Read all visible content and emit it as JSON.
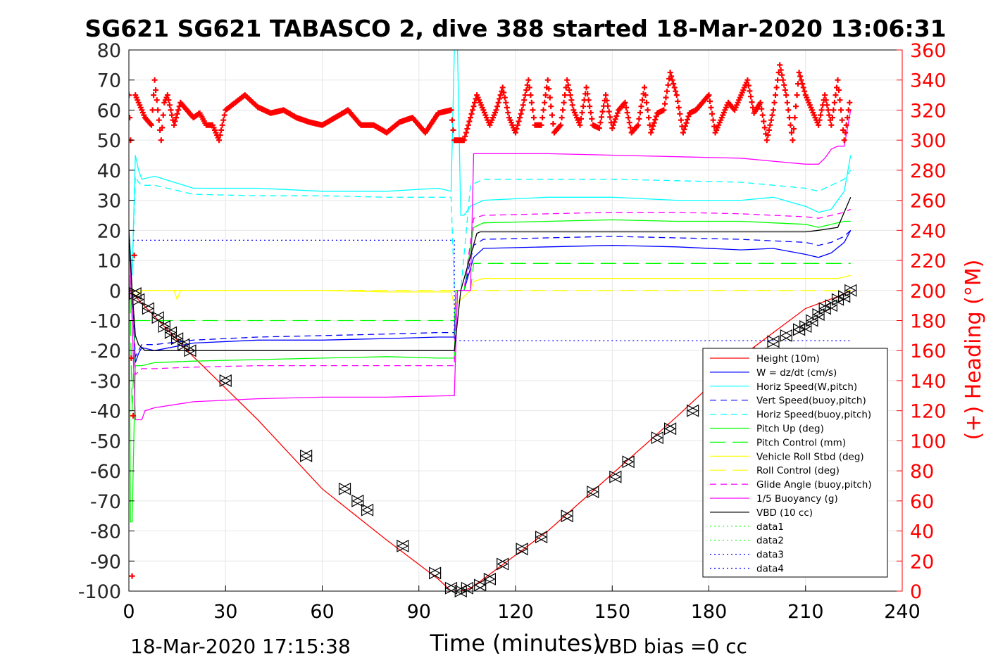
{
  "chart_data": {
    "type": "line",
    "title": "SG621 SG621 TABASCO 2, dive 388 started 18-Mar-2020 13:06:31",
    "xlabel": "Time (minutes)",
    "ylabel_right": "(+) Heading (°M)",
    "footer_left": "18-Mar-2020 17:15:38",
    "footer_right": "VBD bias =0 cc",
    "xlim": [
      0,
      240
    ],
    "ylim": [
      -100,
      80
    ],
    "ylim_right": [
      0,
      360
    ],
    "x_ticks": [
      "0",
      "30",
      "60",
      "90",
      "120",
      "150",
      "180",
      "210",
      "240"
    ],
    "y_ticks": [
      "80",
      "70",
      "60",
      "50",
      "40",
      "30",
      "20",
      "10",
      "0",
      "-10",
      "-20",
      "-30",
      "-40",
      "-50",
      "-60",
      "-70",
      "-80",
      "-90",
      "-100"
    ],
    "y_right_ticks": [
      "360",
      "340",
      "320",
      "300",
      "280",
      "260",
      "240",
      "220",
      "200",
      "180",
      "160",
      "140",
      "120",
      "100",
      "80",
      "60",
      "40",
      "20",
      "0"
    ],
    "grid": true,
    "legend_position": "bottom-right",
    "colors": {
      "height": "#ff0000",
      "w": "#0000ff",
      "horiz": "#00ffff",
      "pitch": "#00ff00",
      "roll": "#ffff00",
      "glide": "#ff00ff",
      "buoy": "#ff00ff",
      "vbd": "#000000",
      "heading": "#ff0000",
      "data4": "#0000ff",
      "right_axis": "#ff0000"
    },
    "series": [
      {
        "name": "Height (10m)",
        "key": "height",
        "color": "#ff0000",
        "dash": "",
        "x": [
          0,
          1,
          2,
          20,
          40,
          60,
          80,
          96,
          100,
          103,
          106,
          110,
          130,
          150,
          170,
          190,
          210,
          220,
          224
        ],
        "y": [
          0,
          -0.5,
          -2,
          -22,
          -43,
          -66,
          -83,
          -96,
          -100,
          -100,
          -99,
          -96,
          -80,
          -61,
          -42,
          -22,
          -6,
          -2,
          0
        ]
      },
      {
        "name": "W = dz/dt (cm/s)",
        "key": "w",
        "color": "#0000ff",
        "dash": "",
        "x": [
          0,
          1,
          2,
          3,
          4,
          8,
          20,
          40,
          60,
          80,
          96,
          101,
          101.5,
          104,
          107,
          110,
          130,
          150,
          170,
          190,
          200,
          210,
          214,
          218,
          222,
          224
        ],
        "y": [
          18,
          0,
          -24,
          -21,
          -19,
          -20,
          -17.5,
          -16.5,
          -16.5,
          -16,
          -15.5,
          -15.5,
          0,
          0,
          11,
          14,
          14.5,
          15,
          14.5,
          13.5,
          14,
          12,
          11,
          12.5,
          16,
          20
        ]
      },
      {
        "name": "Horiz Speed(W,pitch)",
        "key": "horiz",
        "color": "#00ffff",
        "dash": "",
        "x": [
          0,
          1,
          2,
          3,
          4,
          8,
          20,
          40,
          60,
          80,
          96,
          100,
          101,
          102,
          103,
          104,
          106,
          110,
          130,
          150,
          170,
          190,
          200,
          210,
          214,
          218,
          222,
          224
        ],
        "y": [
          20,
          5,
          45,
          40,
          37,
          38,
          34,
          34,
          33,
          33,
          34,
          33,
          80,
          80,
          25,
          25,
          28,
          30,
          31,
          31,
          30,
          30,
          31,
          28,
          26,
          27,
          33,
          45
        ]
      },
      {
        "name": "Vert Speed(buoy,pitch)",
        "key": "vsb",
        "color": "#0000ff",
        "dash": "9,6",
        "x": [
          0,
          1,
          2,
          3,
          4,
          8,
          20,
          40,
          60,
          80,
          96,
          101,
          101.5,
          104,
          107,
          110,
          130,
          150,
          170,
          190,
          200,
          210,
          214,
          218,
          222,
          224
        ],
        "y": [
          14,
          0,
          -22,
          -20,
          -18,
          -18,
          -16.5,
          -15.5,
          -15,
          -14.5,
          -14,
          -14,
          0,
          0,
          15,
          17,
          17.5,
          18,
          17.5,
          17,
          16.5,
          16,
          15,
          16,
          18,
          20
        ]
      },
      {
        "name": "Horiz Speed(buoy,pitch)",
        "key": "hsb",
        "color": "#00ffff",
        "dash": "9,6",
        "x": [
          0,
          1,
          2,
          3,
          4,
          8,
          20,
          40,
          60,
          80,
          96,
          100,
          101,
          103,
          106,
          110,
          130,
          150,
          170,
          190,
          210,
          214,
          218,
          222,
          224
        ],
        "y": [
          20,
          5,
          38,
          36,
          35,
          35,
          32,
          31.5,
          31.5,
          31,
          31,
          31,
          0,
          0,
          35,
          37,
          37,
          37,
          36.5,
          36,
          34,
          33,
          35,
          37,
          40
        ]
      },
      {
        "name": "Pitch Up (deg)",
        "key": "pitch",
        "color": "#00ff00",
        "dash": "",
        "x": [
          0,
          0.5,
          1,
          2,
          3,
          4,
          8,
          20,
          40,
          60,
          80,
          96,
          101,
          101.5,
          104,
          107,
          110,
          130,
          150,
          170,
          190,
          200,
          210,
          214,
          218,
          222,
          224
        ],
        "y": [
          10,
          -77,
          -77,
          -25,
          -25,
          -25,
          -24,
          -23.5,
          -23,
          -22.5,
          -22,
          -22.5,
          -22.5,
          0,
          0,
          21,
          22.5,
          23,
          23.5,
          23,
          23,
          22.5,
          22,
          21,
          22,
          23,
          23
        ]
      },
      {
        "name": "Pitch Control (mm)",
        "key": "pcontrol",
        "color": "#00ff00",
        "dash": "22,10",
        "x": [
          0,
          1,
          2,
          3,
          20,
          40,
          60,
          80,
          101,
          101.5,
          106,
          107,
          130,
          150,
          170,
          190,
          210,
          220,
          224
        ],
        "y": [
          20,
          -40,
          -10,
          -10,
          -10,
          -10,
          -10,
          -10,
          -10,
          0,
          0,
          9,
          9,
          9,
          9,
          9,
          9,
          9,
          9
        ]
      },
      {
        "name": "Vehicle Roll Stbd (deg)",
        "key": "roll",
        "color": "#ffff00",
        "dash": "",
        "x": [
          0,
          1,
          2,
          4,
          8,
          14,
          15,
          16,
          20,
          40,
          60,
          80,
          100,
          101,
          106,
          107,
          110,
          130,
          150,
          170,
          190,
          210,
          220,
          224
        ],
        "y": [
          15,
          0,
          -2,
          0,
          0,
          0,
          -3,
          0,
          0,
          0,
          0,
          -0.5,
          -0.5,
          -5,
          0,
          3,
          4,
          4,
          4,
          4,
          4,
          4,
          4,
          5
        ]
      },
      {
        "name": "Roll Control (deg)",
        "key": "rcontrol",
        "color": "#ffff00",
        "dash": "22,10",
        "x": [
          0,
          1,
          2,
          4,
          40,
          80,
          100,
          101,
          106,
          107,
          130,
          150,
          170,
          190,
          210,
          224
        ],
        "y": [
          10,
          0,
          0,
          0,
          0,
          0,
          0,
          0,
          0,
          0,
          0,
          0,
          0,
          0,
          0,
          0
        ]
      },
      {
        "name": "Glide Angle (buoy,pitch)",
        "key": "glide",
        "color": "#ff00ff",
        "dash": "9,6",
        "x": [
          0,
          1,
          2,
          3,
          4,
          8,
          20,
          40,
          60,
          80,
          96,
          101,
          101.5,
          104,
          107,
          110,
          130,
          150,
          170,
          190,
          200,
          210,
          214,
          218,
          222,
          224
        ],
        "y": [
          15,
          0,
          -28,
          -27,
          -26,
          -26,
          -25.5,
          -25,
          -25,
          -25,
          -25,
          -25,
          0,
          0,
          24,
          25,
          25.5,
          26,
          26,
          25.5,
          25,
          24.5,
          24,
          25,
          26,
          27
        ]
      },
      {
        "name": "1/5 Buoyancy (g)",
        "key": "buoy",
        "color": "#ff00ff",
        "dash": "",
        "x": [
          0,
          1,
          2,
          3,
          4,
          5,
          8,
          20,
          40,
          60,
          80,
          100,
          101,
          102,
          106,
          107,
          130,
          150,
          170,
          190,
          200,
          210,
          214,
          216,
          218,
          220,
          222,
          224
        ],
        "y": [
          20,
          -10,
          -43,
          -43,
          -43,
          -40,
          -39,
          -37,
          -36,
          -35.5,
          -35.5,
          -35,
          -35,
          0,
          0,
          45.5,
          45.5,
          45,
          44.5,
          44,
          43,
          42,
          42,
          44,
          47,
          48,
          48,
          60
        ]
      },
      {
        "name": "VBD (10 cc)",
        "key": "vbd",
        "color": "#000000",
        "dash": "",
        "x": [
          0,
          1,
          2,
          3,
          5,
          20,
          40,
          60,
          80,
          101,
          103,
          108,
          109,
          130,
          150,
          170,
          190,
          210,
          214,
          220,
          224
        ],
        "y": [
          20,
          0,
          -15,
          -18,
          -20,
          -20,
          -20,
          -20,
          -20,
          -20,
          0,
          19,
          19.5,
          19.5,
          19.5,
          19.5,
          19.5,
          19.5,
          20,
          21,
          31
        ]
      },
      {
        "name": "data1",
        "key": "data1",
        "color": "#00ff00",
        "dash": "2,4",
        "x": [],
        "y": []
      },
      {
        "name": "data2",
        "key": "data2",
        "color": "#00ff00",
        "dash": "2,4",
        "x": [],
        "y": []
      },
      {
        "name": "data3",
        "key": "data3",
        "color": "#0000ff",
        "dash": "2,4",
        "x": [],
        "y": []
      },
      {
        "name": "data4",
        "key": "data4",
        "color": "#0000ff",
        "dash": "2,4",
        "x": [
          0,
          101,
          101,
          224
        ],
        "y": [
          16.7,
          16.7,
          -16.7,
          -16.7
        ]
      }
    ],
    "heading": {
      "axis": "right",
      "marker": "+",
      "x": [
        0,
        0.5,
        1,
        2,
        3,
        5,
        7,
        8,
        9,
        10,
        11,
        12,
        14,
        16,
        18,
        20,
        22,
        24,
        26,
        28,
        30,
        33,
        36,
        40,
        44,
        48,
        52,
        56,
        60,
        64,
        68,
        72,
        76,
        80,
        84,
        88,
        92,
        96,
        100,
        101,
        103,
        104,
        106,
        108,
        110,
        112,
        114,
        116,
        118,
        120,
        122,
        124,
        126,
        128,
        130,
        132,
        134,
        136,
        138,
        140,
        142,
        144,
        146,
        148,
        150,
        152,
        154,
        156,
        158,
        160,
        162,
        164,
        166,
        168,
        170,
        172,
        174,
        176,
        178,
        180,
        182,
        184,
        186,
        188,
        190,
        192,
        194,
        196,
        198,
        200,
        202,
        204,
        206,
        208,
        210,
        212,
        214,
        216,
        218,
        220,
        222,
        224
      ],
      "y": [
        330,
        300,
        10,
        330,
        325,
        315,
        310,
        340,
        320,
        300,
        325,
        330,
        310,
        325,
        320,
        315,
        318,
        310,
        310,
        300,
        320,
        325,
        330,
        322,
        318,
        320,
        315,
        312,
        310,
        315,
        320,
        310,
        310,
        305,
        312,
        315,
        305,
        318,
        320,
        300,
        300,
        300,
        315,
        330,
        320,
        310,
        320,
        335,
        315,
        305,
        320,
        340,
        310,
        310,
        340,
        305,
        310,
        340,
        320,
        310,
        335,
        310,
        308,
        330,
        308,
        320,
        325,
        305,
        310,
        335,
        305,
        318,
        320,
        345,
        330,
        305,
        318,
        320,
        325,
        330,
        305,
        315,
        325,
        320,
        330,
        340,
        318,
        325,
        300,
        320,
        350,
        330,
        300,
        345,
        330,
        320,
        310,
        330,
        310,
        340,
        300,
        330
      ]
    },
    "markers": {
      "shape": "triangles",
      "x": [
        2,
        3,
        6,
        9,
        11,
        13,
        15,
        17,
        19,
        30,
        55,
        67,
        71,
        74,
        85,
        95,
        100,
        103,
        105,
        109,
        112,
        116,
        122,
        128,
        136,
        144,
        151,
        155,
        164,
        168,
        175,
        192,
        196,
        200,
        204,
        208,
        210,
        212,
        214,
        216,
        218,
        220,
        222,
        224
      ],
      "y": [
        -1,
        -3,
        -6,
        -9,
        -12,
        -14,
        -16,
        -18,
        -20,
        -30,
        -55,
        -66,
        -70,
        -73,
        -85,
        -94,
        -99,
        -100,
        -99,
        -98,
        -96,
        -91,
        -86,
        -82,
        -75,
        -67,
        -62,
        -57,
        -49,
        -46,
        -40,
        -25,
        -21,
        -17,
        -15,
        -13,
        -12,
        -10,
        -8,
        -6,
        -5,
        -3,
        -2,
        0
      ]
    }
  }
}
